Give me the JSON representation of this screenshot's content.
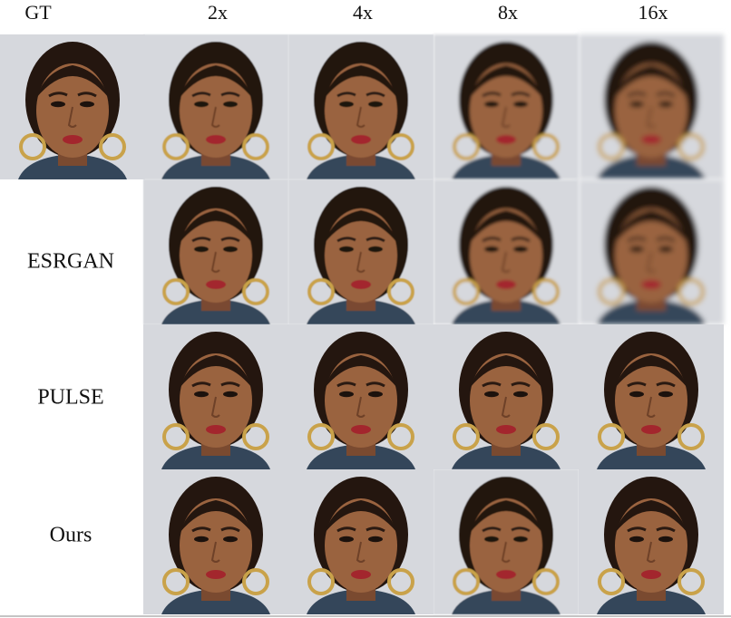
{
  "header": {
    "columns": [
      "GT",
      "2x",
      "4x",
      "8x",
      "16x"
    ]
  },
  "rows": [
    {
      "label": "ESRGAN"
    },
    {
      "label": "PULSE"
    },
    {
      "label": "Ours"
    }
  ]
}
